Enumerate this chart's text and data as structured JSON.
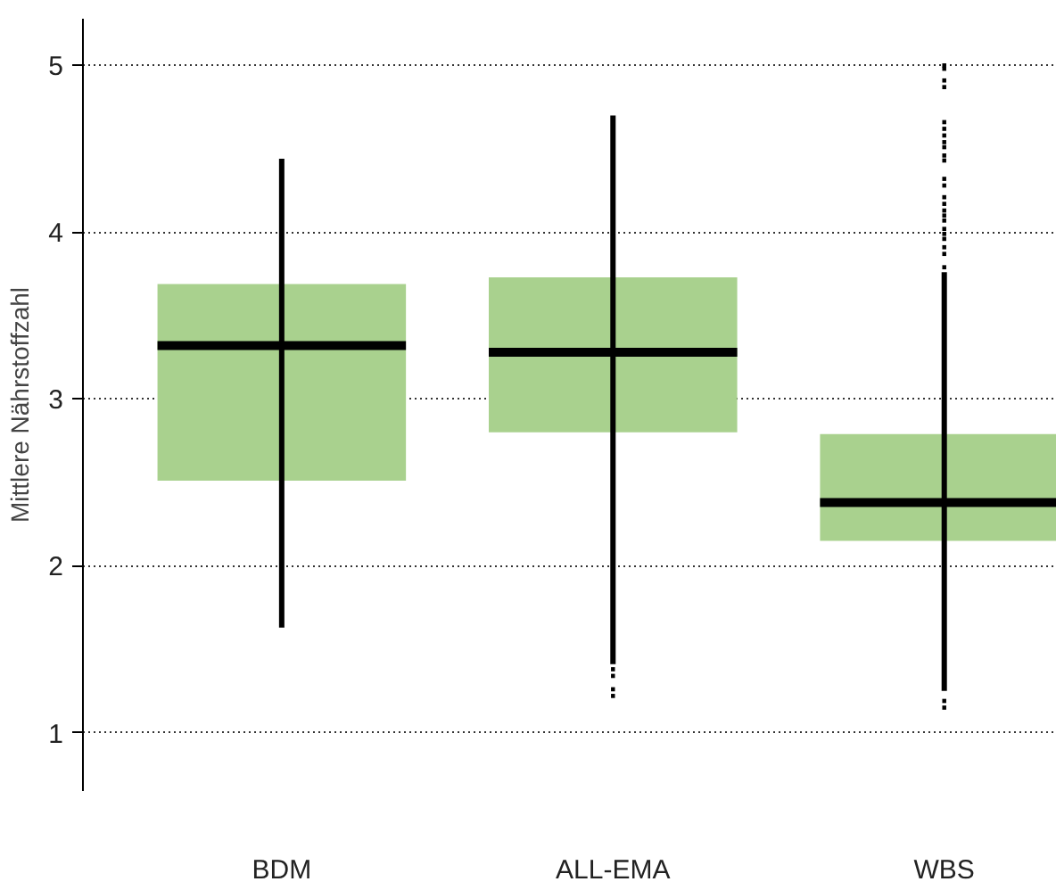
{
  "chart_data": {
    "type": "box",
    "ylabel": "Mittlere Nährstoffzahl",
    "categories": [
      "BDM",
      "ALL-EMA",
      "WBS"
    ],
    "ylim": [
      0.65,
      5.28
    ],
    "yticks": [
      1,
      2,
      3,
      4,
      5
    ],
    "grid": "y",
    "color": "#a9d18e",
    "boxes": [
      {
        "low": 1.63,
        "q1": 2.51,
        "median": 3.32,
        "q3": 3.69,
        "high": 4.44
      },
      {
        "low": 1.41,
        "q1": 2.8,
        "median": 3.28,
        "q3": 3.73,
        "high": 4.7,
        "outliers": [
          1.38,
          1.34,
          1.26,
          1.22
        ]
      },
      {
        "low": 1.25,
        "q1": 2.15,
        "median": 2.38,
        "q3": 2.79,
        "high": 3.76,
        "outliers": [
          5.0,
          4.98,
          4.91,
          4.87,
          4.66,
          4.62,
          4.58,
          4.54,
          4.51,
          4.46,
          4.43,
          4.32,
          4.28,
          4.21,
          4.17,
          4.13,
          4.1,
          4.07,
          4.02,
          3.99,
          3.96,
          3.91,
          3.87,
          3.79,
          1.19,
          1.15
        ]
      }
    ]
  }
}
